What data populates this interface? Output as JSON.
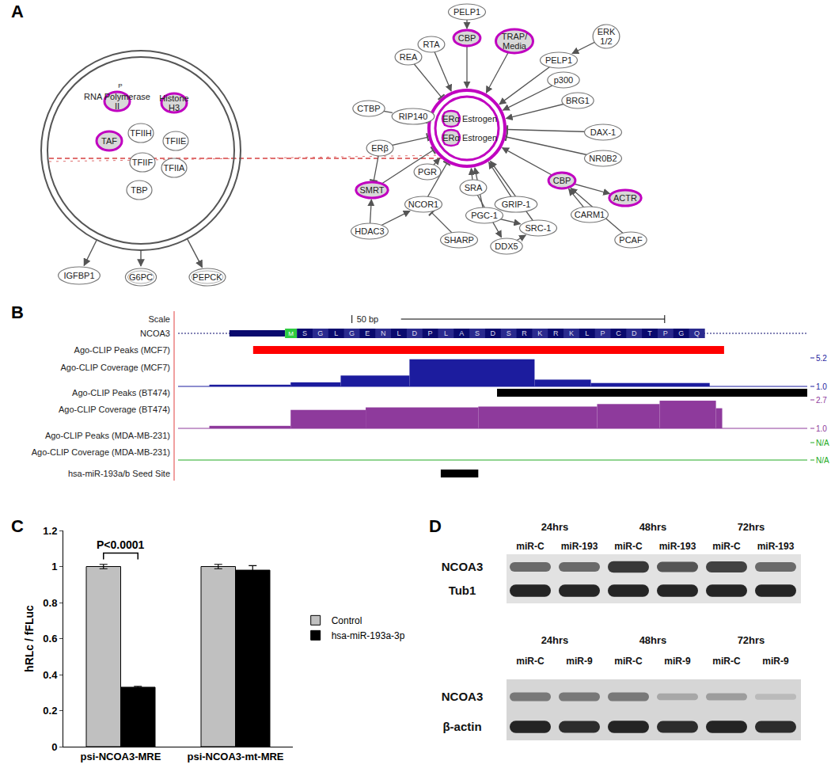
{
  "figure": {
    "panel_a": {
      "label": "A",
      "complex_left": {
        "nodes": [
          {
            "label": "RNA Polymerase\nII",
            "highlighted": true,
            "mark": "P"
          },
          {
            "label": "Histone\nH3",
            "highlighted": true
          },
          {
            "label": "TAF",
            "highlighted": true
          },
          {
            "label": "TFIIH",
            "highlighted": false
          },
          {
            "label": "TFIIE",
            "highlighted": false
          },
          {
            "label": "TFIIF",
            "highlighted": false
          },
          {
            "label": "TFIIA",
            "highlighted": false
          },
          {
            "label": "TBP",
            "highlighted": false
          }
        ],
        "targets": [
          "IGFBP1",
          "G6PC",
          "PEPCK"
        ]
      },
      "complex_right": {
        "core": [
          {
            "label": "ERα",
            "ligand": "Estrogen",
            "highlighted": true
          },
          {
            "label": "ERα",
            "ligand": "Estrogen",
            "highlighted": true
          }
        ],
        "nodes": [
          {
            "label": "PELP1",
            "highlighted": false
          },
          {
            "label": "CBP",
            "highlighted": true
          },
          {
            "label": "TRAP/\nMedia",
            "highlighted": true
          },
          {
            "label": "RTA",
            "highlighted": false
          },
          {
            "label": "REA",
            "highlighted": false
          },
          {
            "label": "PELP1",
            "highlighted": false
          },
          {
            "label": "p300",
            "highlighted": false
          },
          {
            "label": "ERK\n1/2",
            "highlighted": false
          },
          {
            "label": "BRG1",
            "highlighted": false
          },
          {
            "label": "DAX-1",
            "highlighted": false
          },
          {
            "label": "NR0B2",
            "highlighted": false
          },
          {
            "label": "CTBP",
            "highlighted": false
          },
          {
            "label": "RIP140",
            "highlighted": false
          },
          {
            "label": "ERβ",
            "highlighted": false
          },
          {
            "label": "PGR",
            "highlighted": false
          },
          {
            "label": "SRA",
            "highlighted": false
          },
          {
            "label": "GRIP-1",
            "highlighted": false
          },
          {
            "label": "PGC-1",
            "highlighted": false
          },
          {
            "label": "CBP",
            "highlighted": true
          },
          {
            "label": "ACTR",
            "highlighted": true
          },
          {
            "label": "SMRT",
            "highlighted": true
          },
          {
            "label": "NCOR1",
            "highlighted": false
          },
          {
            "label": "HDAC3",
            "highlighted": false
          },
          {
            "label": "SHARP",
            "highlighted": false
          },
          {
            "label": "DDX5",
            "highlighted": false
          },
          {
            "label": "SRC-1",
            "highlighted": false
          },
          {
            "label": "CARM1",
            "highlighted": false
          },
          {
            "label": "PCAF",
            "highlighted": false
          }
        ]
      }
    },
    "panel_b": {
      "label": "B",
      "xlim_bp": [
        0,
        100.6
      ],
      "scale": {
        "label": "Scale",
        "bar_label": "50 bp",
        "length_bp": 50,
        "start_bp": 27.8
      },
      "gene": {
        "label": "NCOA3",
        "utr_bp": [
          8.2,
          17.1
        ],
        "start_codon": {
          "label": "M",
          "bp": [
            17.1,
            19
          ]
        },
        "cds_bp": [
          19,
          84.2
        ],
        "residues": [
          "S",
          "G",
          "L",
          "G",
          "E",
          "N",
          "L",
          "D",
          "P",
          "L",
          "A",
          "S",
          "D",
          "S",
          "R",
          "K",
          "R",
          "K",
          "L",
          "P",
          "C",
          "D",
          "T",
          "P",
          "G",
          "Q"
        ]
      },
      "tracks": [
        {
          "label": "Ago-CLIP Peaks (MCF7)",
          "kind": "peaks",
          "color": "#ff0000",
          "intervals": [
            [
              12,
              87.3
            ]
          ]
        },
        {
          "label": "Ago-CLIP Coverage (MCF7)",
          "kind": "coverage",
          "color": "#1c1c9e",
          "ylim": [
            1,
            5.2
          ],
          "yticks": [
            5.2,
            {
              "value": 1,
              "label": "1.0"
            }
          ],
          "steps": [
            {
              "start": 5,
              "end": 18,
              "value": 1.25
            },
            {
              "start": 18,
              "end": 26,
              "value": 1.6
            },
            {
              "start": 26,
              "end": 37,
              "value": 2.6
            },
            {
              "start": 37,
              "end": 57,
              "value": 5.0
            },
            {
              "start": 57,
              "end": 66,
              "value": 2.0
            },
            {
              "start": 66,
              "end": 85,
              "value": 1.5
            }
          ]
        },
        {
          "label": "Ago-CLIP Peaks (BT474)",
          "kind": "peaks",
          "color": "#000000",
          "intervals": [
            [
              51,
              100.6
            ]
          ]
        },
        {
          "label": "Ago-CLIP Coverage (BT474)",
          "kind": "coverage",
          "color": "#8e3a9c",
          "ylim": [
            1,
            2.7
          ],
          "yticks": [
            2.7,
            {
              "value": 1,
              "label": "1.0"
            }
          ],
          "steps": [
            {
              "start": 5,
              "end": 18,
              "value": 1.15
            },
            {
              "start": 18,
              "end": 30,
              "value": 2.1
            },
            {
              "start": 30,
              "end": 48,
              "value": 2.25
            },
            {
              "start": 48,
              "end": 67,
              "value": 2.3
            },
            {
              "start": 67,
              "end": 77,
              "value": 2.45
            },
            {
              "start": 77,
              "end": 86,
              "value": 2.65
            },
            {
              "start": 86,
              "end": 87,
              "value": 2.2
            }
          ]
        },
        {
          "label": "Ago-CLIP Peaks (MDA-MB-231)",
          "kind": "peaks",
          "color": "#000000"
        },
        {
          "label": "Ago-CLIP Coverage (MDA-MB-231)",
          "kind": "coverage",
          "color": "#22aa22",
          "scale_labels": [
            "N/A",
            "N/A"
          ]
        }
      ],
      "seed": {
        "label": "hsa-miR-193a/b Seed Site",
        "interval": [
          42,
          48
        ]
      }
    },
    "panel_d": {
      "label": "D",
      "blots": [
        {
          "timepoints": [
            "24hrs",
            "48hrs",
            "72hrs"
          ],
          "lanes": [
            "miR-C",
            "miR-193",
            "miR-C",
            "miR-193",
            "miR-C",
            "miR-193"
          ],
          "rows": [
            {
              "label": "NCOA3",
              "intensity": [
                0.6,
                0.6,
                0.85,
                0.7,
                0.8,
                0.6
              ]
            },
            {
              "label": "Tub1",
              "intensity": [
                0.95,
                0.95,
                0.95,
                0.95,
                0.95,
                0.95
              ]
            }
          ]
        },
        {
          "timepoints": [
            "24hrs",
            "48hrs",
            "72hrs"
          ],
          "lanes": [
            "miR-C",
            "miR-9",
            "miR-C",
            "miR-9",
            "miR-C",
            "miR-9"
          ],
          "rows": [
            {
              "label": "NCOA3",
              "intensity": [
                0.5,
                0.5,
                0.5,
                0.25,
                0.3,
                0.15
              ]
            },
            {
              "label": "β-actin",
              "intensity": [
                0.95,
                0.9,
                0.95,
                0.9,
                0.95,
                0.9
              ]
            }
          ]
        }
      ]
    }
  },
  "chart_data": {
    "label": "C",
    "type": "bar",
    "categories": [
      "psi-NCOA3-MRE",
      "psi-NCOA3-mt-MRE"
    ],
    "series": [
      {
        "name": "Control",
        "color": "#c0c0c0",
        "values": [
          1.0,
          1.0
        ],
        "errors": [
          0.012,
          0.012
        ]
      },
      {
        "name": "hsa-miR-193a-3p",
        "color": "#000000",
        "values": [
          0.33,
          0.98
        ],
        "errors": [
          0.005,
          0.025
        ]
      }
    ],
    "y_label": "hRLc / fFLuc",
    "ylim": [
      0,
      1.2
    ],
    "yticks": [
      0,
      0.2,
      0.4,
      0.6,
      0.8,
      1,
      1.2
    ],
    "grid": false,
    "legend": "right",
    "annotations": [
      {
        "text": "P<0.0001",
        "category": "psi-NCOA3-MRE"
      }
    ]
  }
}
